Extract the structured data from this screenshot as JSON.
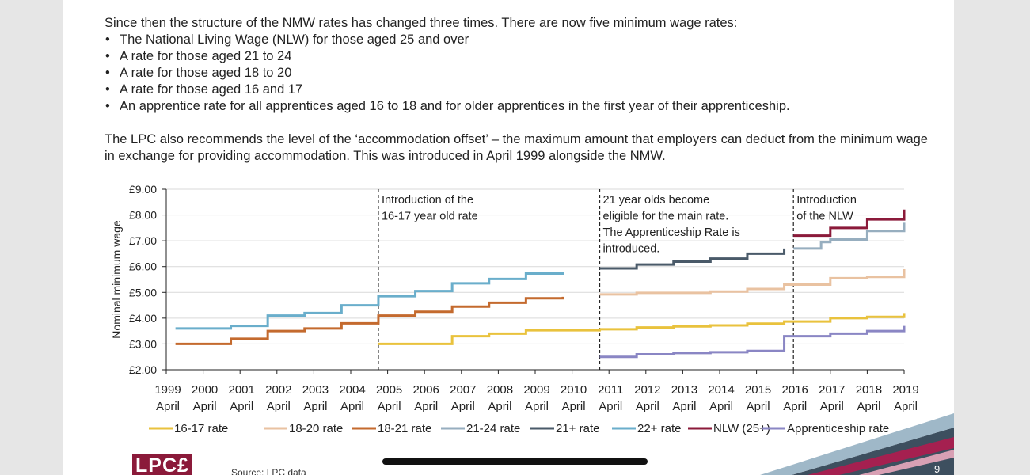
{
  "text": {
    "para1": "Since then the structure of the NMW rates has changed three times. There are now five minimum wage rates:",
    "bullets": [
      "The National Living Wage (NLW) for those aged 25 and over",
      "A rate for those aged 21 to 24",
      "A rate for those aged 18 to 20",
      "A rate for those aged 16 and 17",
      "An apprentice rate for all apprentices aged 16 to 18 and for older apprentices in the first year of their apprenticeship."
    ],
    "para2": "The LPC also recommends the level of the ‘accommodation offset’ – the maximum amount that employers can deduct from the minimum wage in exchange for providing accommodation. This was introduced in April 1999 alongside the NMW."
  },
  "footer": {
    "logo": "LPC£",
    "source": "Source: LPC data",
    "page_number": "9"
  },
  "colors": {
    "16-17": "#e9c23d",
    "18-20": "#e9c2a1",
    "18-21": "#c46a2e",
    "21-24": "#97aebf",
    "21plus": "#4a5a69",
    "22plus": "#6aaecb",
    "nlw": "#8b1a3a",
    "apprenticeship": "#8a86c4",
    "brand": "#8b1a3a"
  },
  "chart_data": {
    "type": "line",
    "step": true,
    "ylabel": "Nominal minimum wage",
    "ylim": [
      2,
      9
    ],
    "yticks": [
      "£2.00",
      "£3.00",
      "£4.00",
      "£5.00",
      "£6.00",
      "£7.00",
      "£8.00",
      "£9.00"
    ],
    "xticks": [
      "1999",
      "2000",
      "2001",
      "2002",
      "2003",
      "2004",
      "2005",
      "2006",
      "2007",
      "2008",
      "2009",
      "2010",
      "2011",
      "2012",
      "2013",
      "2014",
      "2015",
      "2016",
      "2017",
      "2018",
      "2019"
    ],
    "xtick_sub": "April",
    "grid": "horizontal",
    "legend_position": "bottom",
    "annotations": [
      {
        "x": 2004.75,
        "lines": [
          "Introduction of the",
          "16-17 year old rate"
        ]
      },
      {
        "x": 2010.75,
        "lines": [
          "21 year olds become",
          "eligible for the main rate.",
          "The Apprenticeship Rate is",
          "introduced."
        ]
      },
      {
        "x": 2016.0,
        "lines": [
          "Introduction",
          "of the NLW"
        ]
      }
    ],
    "series": [
      {
        "name": "16-17 rate",
        "color_key": "16-17",
        "x": [
          2004.75,
          2006.75,
          2007.75,
          2008.75,
          2009.75,
          2010.75,
          2011.75,
          2012.75,
          2013.75,
          2014.75,
          2015.75,
          2016.0,
          2017.0,
          2018.0,
          2019.0
        ],
        "y": [
          3.0,
          3.3,
          3.4,
          3.53,
          3.53,
          3.57,
          3.64,
          3.68,
          3.72,
          3.79,
          3.87,
          3.87,
          4.0,
          4.05,
          4.2
        ]
      },
      {
        "name": "18-20 rate",
        "color_key": "18-20",
        "x": [
          2010.75,
          2011.75,
          2012.75,
          2013.75,
          2014.75,
          2015.75,
          2016.0,
          2017.0,
          2018.0,
          2019.0
        ],
        "y": [
          4.92,
          4.98,
          4.98,
          5.03,
          5.13,
          5.3,
          5.3,
          5.55,
          5.6,
          5.9
        ]
      },
      {
        "name": "18-21 rate",
        "color_key": "18-21",
        "x": [
          1999.25,
          2000.75,
          2001.75,
          2002.75,
          2003.75,
          2004.75,
          2005.75,
          2006.75,
          2007.75,
          2008.75,
          2009.75
        ],
        "y": [
          3.0,
          3.2,
          3.5,
          3.6,
          3.8,
          4.1,
          4.25,
          4.45,
          4.6,
          4.77,
          4.83
        ]
      },
      {
        "name": "21-24 rate",
        "color_key": "21-24",
        "x": [
          2016.0,
          2016.75,
          2017.0,
          2018.0,
          2019.0
        ],
        "y": [
          6.7,
          6.95,
          7.05,
          7.38,
          7.7
        ]
      },
      {
        "name": "21+ rate",
        "color_key": "21plus",
        "x": [
          2010.75,
          2011.75,
          2012.75,
          2013.75,
          2014.75,
          2015.75
        ],
        "y": [
          5.93,
          6.08,
          6.19,
          6.31,
          6.5,
          6.7
        ]
      },
      {
        "name": "22+ rate",
        "color_key": "22plus",
        "x": [
          1999.25,
          2000.75,
          2001.75,
          2002.75,
          2003.75,
          2004.75,
          2005.75,
          2006.75,
          2007.75,
          2008.75,
          2009.75
        ],
        "y": [
          3.6,
          3.7,
          4.1,
          4.2,
          4.5,
          4.85,
          5.05,
          5.35,
          5.52,
          5.73,
          5.8
        ]
      },
      {
        "name": "NLW (25+)",
        "color_key": "nlw",
        "x": [
          2016.0,
          2017.0,
          2018.0,
          2019.0
        ],
        "y": [
          7.2,
          7.5,
          7.83,
          8.21
        ]
      },
      {
        "name": "Apprenticeship rate",
        "color_key": "apprenticeship",
        "x": [
          2010.75,
          2011.75,
          2012.75,
          2013.75,
          2014.75,
          2015.75,
          2016.0,
          2017.0,
          2018.0,
          2019.0
        ],
        "y": [
          2.5,
          2.6,
          2.65,
          2.68,
          2.73,
          3.3,
          3.3,
          3.4,
          3.5,
          3.7
        ]
      }
    ]
  }
}
